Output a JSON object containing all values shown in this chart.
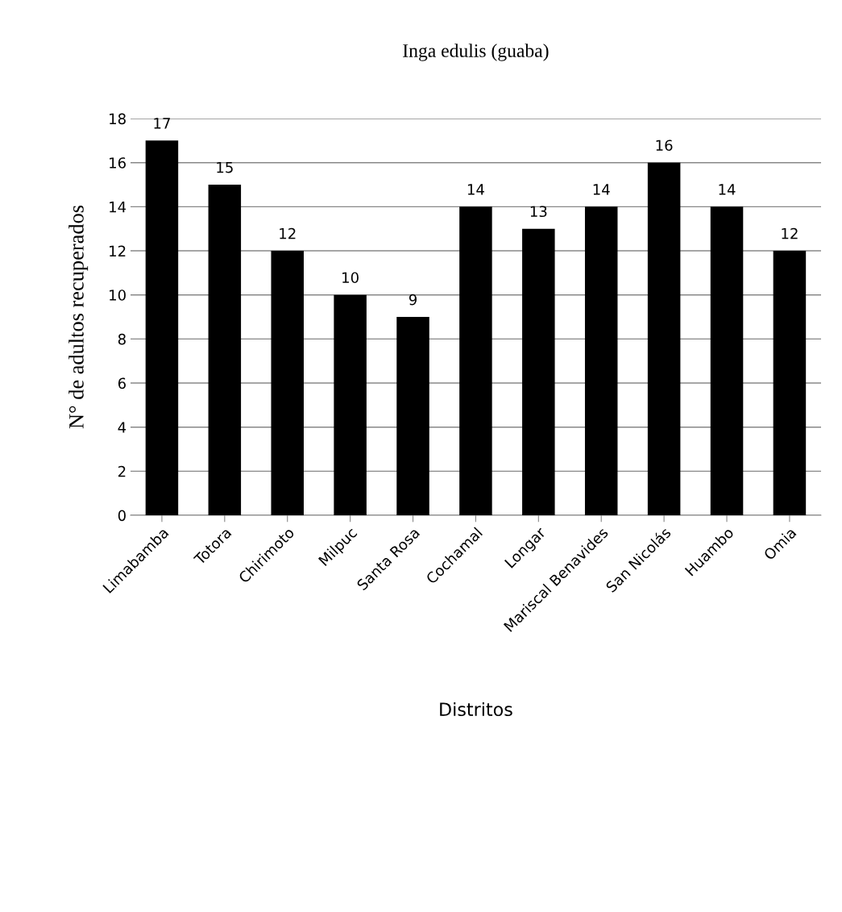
{
  "chart_data": {
    "type": "bar",
    "title": "Inga edulis (guaba)",
    "xlabel": "Distritos",
    "ylabel": "N° de adultos recuperados",
    "categories": [
      "Limabamba",
      "Totora",
      "Chirimoto",
      "Milpuc",
      "Santa Rosa",
      "Cochamal",
      "Longar",
      "Mariscal Benavides",
      "San Nicolás",
      "Huambo",
      "Omia"
    ],
    "values": [
      17,
      15,
      12,
      10,
      9,
      14,
      13,
      14,
      16,
      14,
      12
    ],
    "color": "#000000",
    "ylim": [
      0,
      18
    ],
    "yticks": [
      0,
      2,
      4,
      6,
      8,
      10,
      12,
      14,
      16,
      18
    ],
    "grid": "y",
    "data_labels": true
  }
}
